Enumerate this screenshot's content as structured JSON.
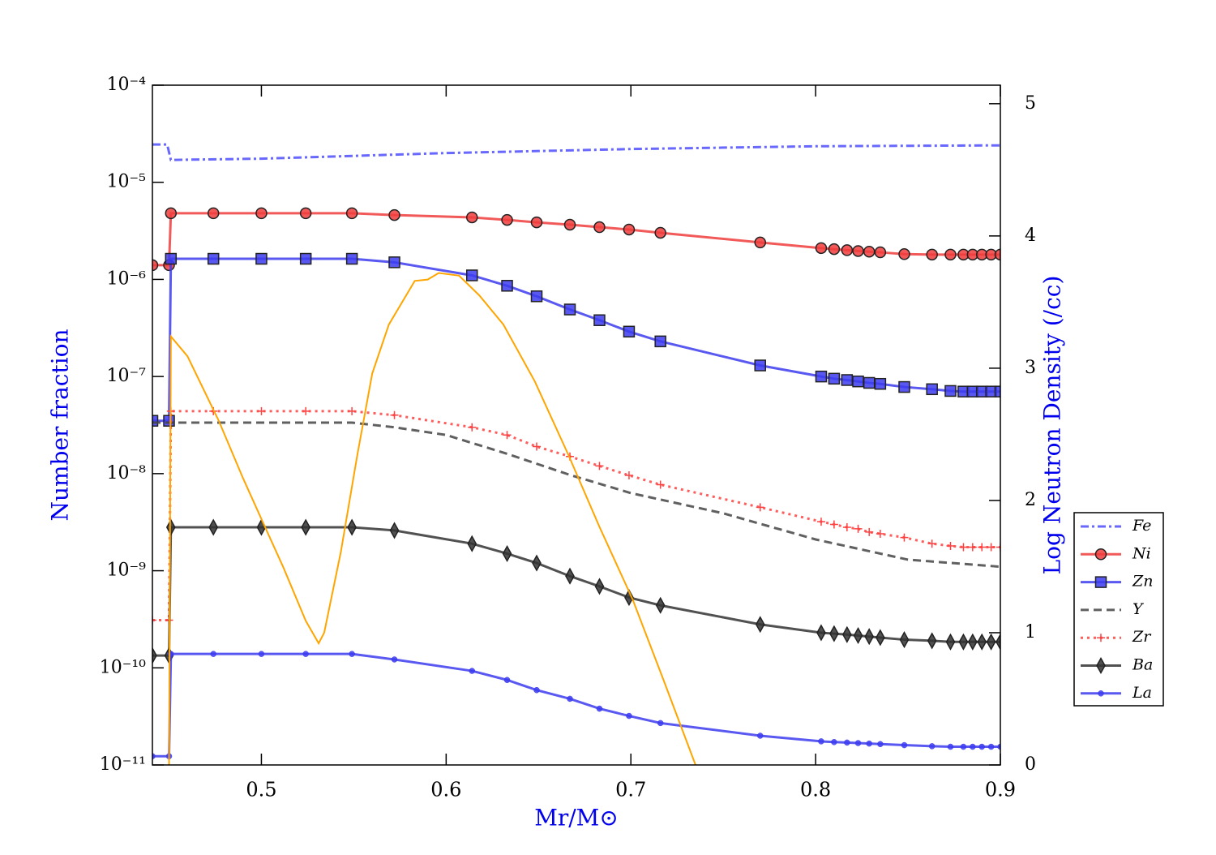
{
  "chart_data": {
    "type": "line",
    "xlabel": "Mr/M⊙",
    "ylabel": "Number fraction",
    "y2label": "Log Neutron Density (/cc)",
    "xlim": [
      0.441,
      0.9
    ],
    "ylim": [
      1e-11,
      0.0001
    ],
    "y2lim": [
      0,
      5.14
    ],
    "yscale": "log",
    "xticks": [
      0.5,
      0.6,
      0.7,
      0.8,
      0.9
    ],
    "yticks": [
      {
        "value": 0.0001,
        "label": "10⁻⁴"
      },
      {
        "value": 1e-05,
        "label": "10⁻⁵"
      },
      {
        "value": 1e-06,
        "label": "10⁻⁶"
      },
      {
        "value": 1e-07,
        "label": "10⁻⁷"
      },
      {
        "value": 1e-08,
        "label": "10⁻⁸"
      },
      {
        "value": 1e-09,
        "label": "10⁻⁹"
      },
      {
        "value": 1e-10,
        "label": "10⁻¹⁰"
      },
      {
        "value": 1e-11,
        "label": "10⁻¹¹"
      }
    ],
    "y2ticks": [
      0,
      1,
      2,
      3,
      4,
      5
    ],
    "legend": "right",
    "series": [
      {
        "name": "Fe",
        "color": "#4d4dff",
        "linestyle": "dashdot",
        "x": [
          0.441,
          0.449,
          0.451,
          0.5,
          0.6,
          0.7,
          0.8,
          0.9
        ],
        "values": [
          2.45e-05,
          2.45e-05,
          1.7e-05,
          1.75e-05,
          2e-05,
          2.2e-05,
          2.35e-05,
          2.4e-05
        ]
      },
      {
        "name": "Ni",
        "color": "#f03c3c",
        "linestyle": "solid",
        "marker": "o",
        "x": [
          0.441,
          0.45,
          0.451,
          0.474,
          0.5,
          0.524,
          0.549,
          0.572,
          0.614,
          0.633,
          0.649,
          0.667,
          0.683,
          0.699,
          0.716,
          0.77,
          0.803,
          0.81,
          0.817,
          0.823,
          0.829,
          0.835,
          0.848,
          0.863,
          0.873,
          0.88,
          0.885,
          0.89,
          0.895,
          0.9
        ],
        "values": [
          1.4e-06,
          1.4e-06,
          4.8e-06,
          4.8e-06,
          4.8e-06,
          4.8e-06,
          4.8e-06,
          4.6e-06,
          4.35e-06,
          4.1e-06,
          3.87e-06,
          3.66e-06,
          3.45e-06,
          3.26e-06,
          3.02e-06,
          2.4e-06,
          2.1e-06,
          2.05e-06,
          2e-06,
          1.96e-06,
          1.93e-06,
          1.9e-06,
          1.82e-06,
          1.8e-06,
          1.8e-06,
          1.8e-06,
          1.8e-06,
          1.8e-06,
          1.8e-06,
          1.8e-06
        ]
      },
      {
        "name": "Zn",
        "color": "#3c3cf0",
        "linestyle": "solid",
        "marker": "s",
        "x": [
          0.441,
          0.45,
          0.451,
          0.474,
          0.5,
          0.524,
          0.549,
          0.572,
          0.614,
          0.633,
          0.649,
          0.667,
          0.683,
          0.699,
          0.716,
          0.77,
          0.803,
          0.81,
          0.817,
          0.823,
          0.829,
          0.835,
          0.848,
          0.863,
          0.873,
          0.88,
          0.885,
          0.89,
          0.895,
          0.9
        ],
        "values": [
          3.5e-08,
          3.5e-08,
          1.63e-06,
          1.63e-06,
          1.63e-06,
          1.63e-06,
          1.63e-06,
          1.5e-06,
          1.1e-06,
          8.6e-07,
          6.7e-07,
          4.9e-07,
          3.8e-07,
          2.9e-07,
          2.3e-07,
          1.3e-07,
          1e-07,
          9.5e-08,
          9.2e-08,
          8.9e-08,
          8.6e-08,
          8.4e-08,
          7.8e-08,
          7.4e-08,
          7.1e-08,
          7e-08,
          7e-08,
          7e-08,
          7e-08,
          7e-08
        ]
      },
      {
        "name": "Y",
        "color": "#444444",
        "linestyle": "dashed",
        "x": [
          0.441,
          0.549,
          0.572,
          0.6,
          0.633,
          0.667,
          0.7,
          0.75,
          0.8,
          0.85,
          0.9
        ],
        "values": [
          3.35e-08,
          3.35e-08,
          3e-08,
          2.5e-08,
          1.6e-08,
          9.7e-09,
          6.3e-09,
          3.9e-09,
          2.1e-09,
          1.3e-09,
          1.1e-09
        ]
      },
      {
        "name": "Zr",
        "color": "#ff4040",
        "linestyle": "dotted",
        "marker": "+",
        "x": [
          0.441,
          0.45,
          0.451,
          0.474,
          0.5,
          0.524,
          0.549,
          0.572,
          0.614,
          0.633,
          0.649,
          0.667,
          0.683,
          0.699,
          0.716,
          0.77,
          0.803,
          0.81,
          0.817,
          0.823,
          0.829,
          0.835,
          0.848,
          0.863,
          0.873,
          0.88,
          0.885,
          0.89,
          0.895,
          0.9
        ],
        "values": [
          3.1e-10,
          3.1e-10,
          4.4e-08,
          4.4e-08,
          4.4e-08,
          4.4e-08,
          4.4e-08,
          4e-08,
          3e-08,
          2.5e-08,
          1.9e-08,
          1.5e-08,
          1.2e-08,
          9.6e-09,
          7.7e-09,
          4.5e-09,
          3.2e-09,
          3e-09,
          2.8e-09,
          2.7e-09,
          2.5e-09,
          2.4e-09,
          2.2e-09,
          1.9e-09,
          1.8e-09,
          1.75e-09,
          1.75e-09,
          1.75e-09,
          1.75e-09,
          1.75e-09
        ]
      },
      {
        "name": "Ba",
        "color": "#333333",
        "linestyle": "solid",
        "marker": "d",
        "x": [
          0.441,
          0.45,
          0.451,
          0.474,
          0.5,
          0.524,
          0.549,
          0.572,
          0.614,
          0.633,
          0.649,
          0.667,
          0.683,
          0.699,
          0.716,
          0.77,
          0.803,
          0.81,
          0.817,
          0.823,
          0.829,
          0.835,
          0.848,
          0.863,
          0.873,
          0.88,
          0.885,
          0.89,
          0.895,
          0.9
        ],
        "values": [
          1.34e-10,
          1.34e-10,
          2.8e-09,
          2.8e-09,
          2.8e-09,
          2.8e-09,
          2.8e-09,
          2.6e-09,
          1.9e-09,
          1.5e-09,
          1.2e-09,
          8.8e-10,
          6.9e-10,
          5.3e-10,
          4.4e-10,
          2.8e-10,
          2.3e-10,
          2.25e-10,
          2.2e-10,
          2.15e-10,
          2.1e-10,
          2.05e-10,
          1.95e-10,
          1.9e-10,
          1.85e-10,
          1.85e-10,
          1.85e-10,
          1.85e-10,
          1.85e-10,
          1.85e-10
        ]
      },
      {
        "name": "La",
        "color": "#3c3cf0",
        "linestyle": "solid",
        "marker": ".",
        "x": [
          0.441,
          0.45,
          0.451,
          0.474,
          0.5,
          0.524,
          0.549,
          0.572,
          0.614,
          0.633,
          0.649,
          0.667,
          0.683,
          0.699,
          0.716,
          0.77,
          0.803,
          0.81,
          0.817,
          0.823,
          0.829,
          0.835,
          0.848,
          0.863,
          0.873,
          0.88,
          0.885,
          0.89,
          0.895,
          0.9
        ],
        "values": [
          1.23e-11,
          1.23e-11,
          1.39e-10,
          1.39e-10,
          1.39e-10,
          1.39e-10,
          1.39e-10,
          1.22e-10,
          9.3e-11,
          7.5e-11,
          5.9e-11,
          4.8e-11,
          3.8e-11,
          3.2e-11,
          2.7e-11,
          2e-11,
          1.75e-11,
          1.72e-11,
          1.7e-11,
          1.68e-11,
          1.66e-11,
          1.64e-11,
          1.6e-11,
          1.56e-11,
          1.54e-11,
          1.54e-11,
          1.54e-11,
          1.54e-11,
          1.54e-11,
          1.54e-11
        ]
      },
      {
        "color": "#ffa500",
        "linestyle": "solid",
        "axis": "y2",
        "x": [
          0.45,
          0.451,
          0.46,
          0.477,
          0.49,
          0.5,
          0.512,
          0.524,
          0.531,
          0.534,
          0.543,
          0.552,
          0.56,
          0.569,
          0.583,
          0.59,
          0.596,
          0.607,
          0.618,
          0.631,
          0.648,
          0.666,
          0.683,
          0.701,
          0.718,
          0.735
        ],
        "values": [
          0,
          3.24,
          3.09,
          2.6,
          2.17,
          1.86,
          1.49,
          1.09,
          0.92,
          1.0,
          1.61,
          2.35,
          2.96,
          3.33,
          3.66,
          3.67,
          3.72,
          3.7,
          3.55,
          3.33,
          2.9,
          2.35,
          1.8,
          1.25,
          0.63,
          0
        ]
      }
    ]
  }
}
